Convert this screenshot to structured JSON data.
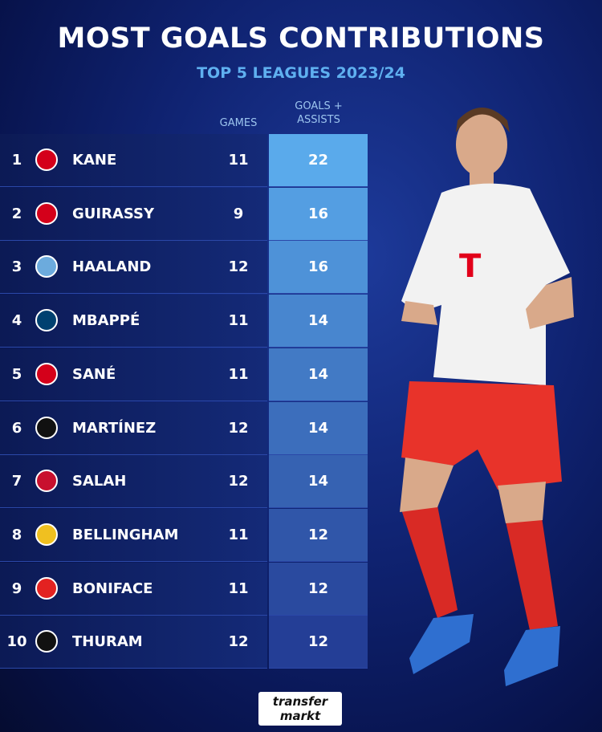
{
  "header": {
    "title": "MOST GOALS CONTRIBUTIONS",
    "subtitle": "TOP 5 LEAGUES 2023/24"
  },
  "table": {
    "columns": [
      "GAMES",
      "GOALS + ASSISTS"
    ],
    "rows": [
      [
        "1",
        "KANE",
        "11",
        "22"
      ],
      [
        "2",
        "GUIRASSY",
        "9",
        "16"
      ],
      [
        "3",
        "HAALAND",
        "12",
        "16"
      ],
      [
        "4",
        "MBAPPÉ",
        "11",
        "14"
      ],
      [
        "5",
        "SANÉ",
        "11",
        "14"
      ],
      [
        "6",
        "MARTÍNEZ",
        "12",
        "14"
      ],
      [
        "7",
        "SALAH",
        "12",
        "14"
      ],
      [
        "8",
        "BELLINGHAM",
        "11",
        "12"
      ],
      [
        "9",
        "BONIFACE",
        "11",
        "12"
      ],
      [
        "10",
        "THURAM",
        "12",
        "12"
      ]
    ]
  },
  "footer": {
    "logo": [
      "transfer",
      "markt"
    ]
  }
}
